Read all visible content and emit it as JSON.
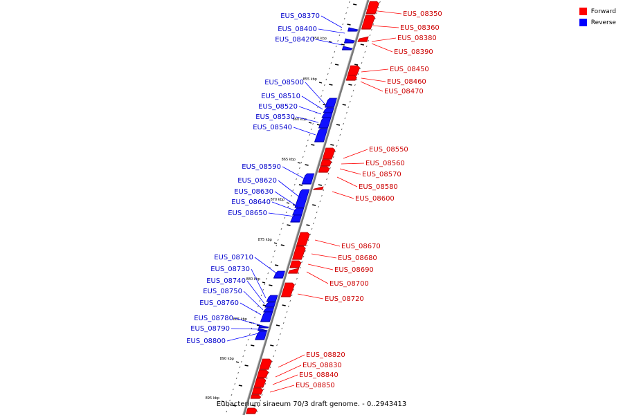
{
  "legend": {
    "forward_label": "Forward",
    "reverse_label": "Reverse",
    "forward_color": "#ff0000",
    "reverse_color": "#0000ff"
  },
  "caption": "Eubacterium siraeum 70/3 draft genome. - 0..2943413",
  "kbp_labels": [
    "850 kbp",
    "855 kbp",
    "860 kbp",
    "865 kbp",
    "870 kbp",
    "875 kbp",
    "880 kbp",
    "885 kbp",
    "890 kbp",
    "895 kbp"
  ],
  "forward_genes": [
    "EUS_08350",
    "EUS_08360",
    "EUS_08380",
    "EUS_08390",
    "EUS_08450",
    "EUS_08460",
    "EUS_08470",
    "EUS_08550",
    "EUS_08560",
    "EUS_08570",
    "EUS_08580",
    "EUS_08600",
    "EUS_08670",
    "EUS_08680",
    "EUS_08690",
    "EUS_08700",
    "EUS_08720",
    "EUS_08820",
    "EUS_08830",
    "EUS_08840",
    "EUS_08850"
  ],
  "reverse_genes": [
    "EUS_08370",
    "EUS_08400",
    "EUS_08420",
    "EUS_08500",
    "EUS_08510",
    "EUS_08520",
    "EUS_08530",
    "EUS_08540",
    "EUS_08590",
    "EUS_08620",
    "EUS_08630",
    "EUS_08640",
    "EUS_08650",
    "EUS_08710",
    "EUS_08730",
    "EUS_08740",
    "EUS_08750",
    "EUS_08760",
    "EUS_08780",
    "EUS_08790",
    "EUS_08800"
  ]
}
